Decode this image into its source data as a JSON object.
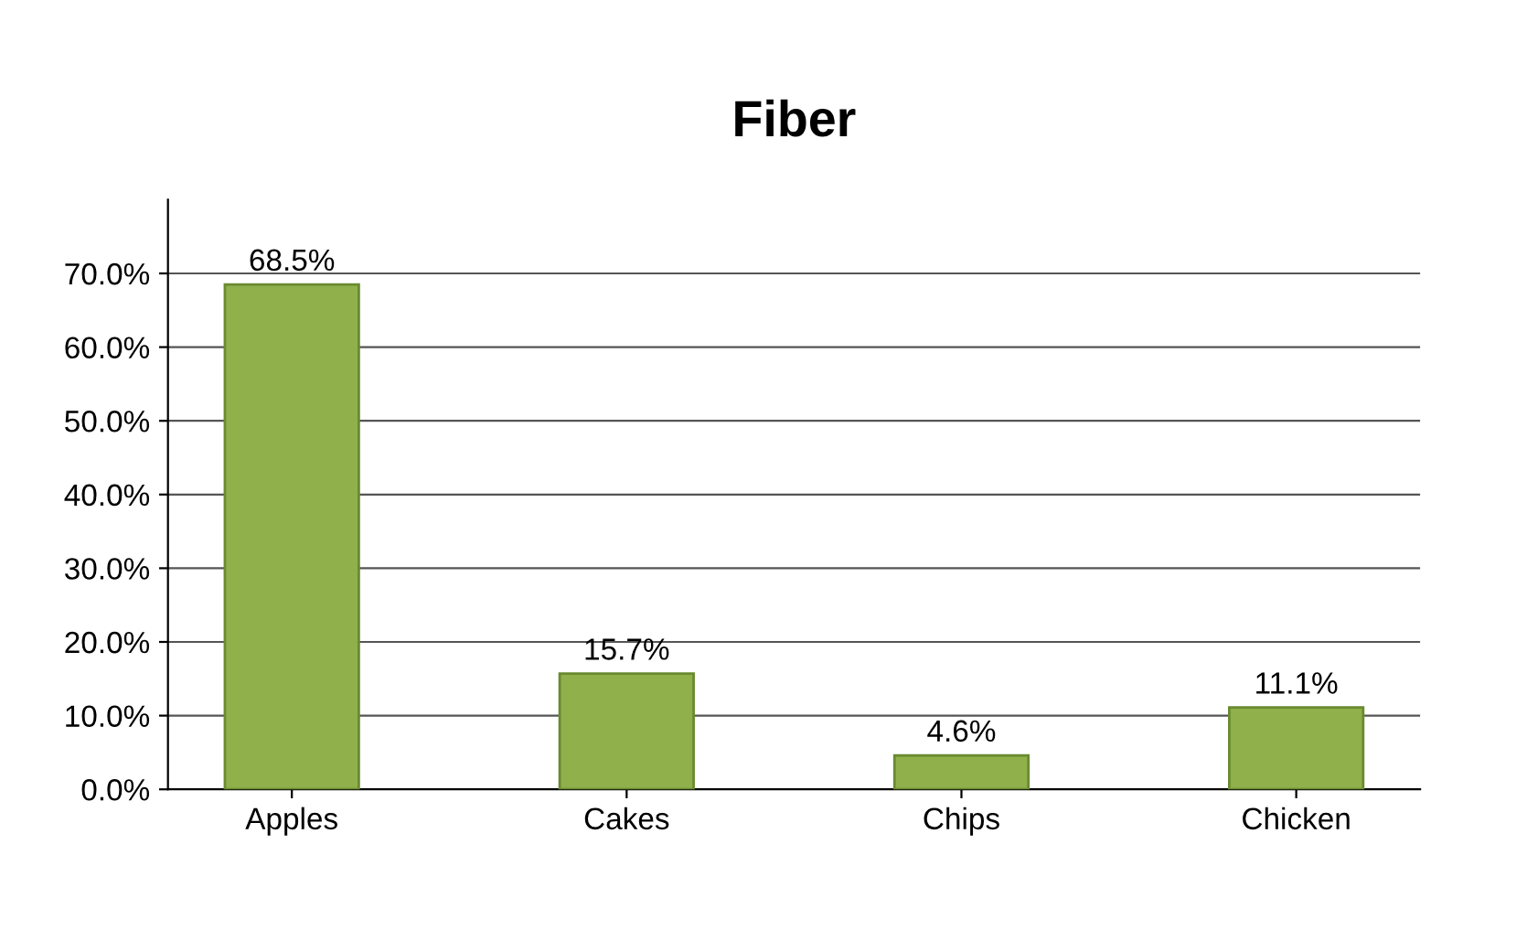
{
  "chart_data": {
    "type": "bar",
    "title": "Fiber",
    "categories": [
      "Apples",
      "Cakes",
      "Chips",
      "Chicken"
    ],
    "values": [
      68.5,
      15.7,
      4.6,
      11.1
    ],
    "value_labels": [
      "68.5%",
      "15.7%",
      "4.6%",
      "11.1%"
    ],
    "color": "#8fb04a",
    "ylim": [
      0,
      80
    ],
    "yticks": [
      {
        "value": 0,
        "label": "0.0%"
      },
      {
        "value": 10,
        "label": "10.0%"
      },
      {
        "value": 20,
        "label": "20.0%"
      },
      {
        "value": 30,
        "label": "30.0%"
      },
      {
        "value": 40,
        "label": "40.0%"
      },
      {
        "value": 50,
        "label": "50.0%"
      },
      {
        "value": 60,
        "label": "60.0%"
      },
      {
        "value": 70,
        "label": "70.0%"
      }
    ],
    "grid": "y"
  }
}
